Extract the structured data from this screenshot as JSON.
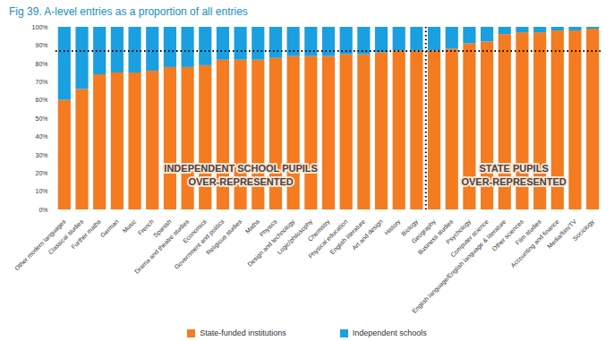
{
  "chart_data": {
    "type": "bar",
    "title": "Fig 39. A-level entries as a proportion of all entries",
    "stacked": true,
    "categories": [
      "Other modern languages",
      "Classical studies",
      "Further maths",
      "German",
      "Music",
      "French",
      "Spanish",
      "Drama and theatre studies",
      "Economics",
      "Government and politics",
      "Religious studies",
      "Maths",
      "Physics",
      "Design and technology",
      "Logic/philosophy",
      "Chemistry",
      "Physical education",
      "English literature",
      "Art and design",
      "History",
      "Biology",
      "Geography",
      "Business studies",
      "Psychology",
      "Computer science",
      "English language/English language & literature",
      "Other sciences",
      "Film studies",
      "Accounting and finance",
      "Media/film/TV",
      "Sociology"
    ],
    "series": [
      {
        "name": "State-funded institutions",
        "color": "#f47b20",
        "values": [
          60,
          66,
          74,
          75,
          75,
          76,
          78,
          78,
          79,
          82,
          82,
          82,
          83,
          84,
          84,
          84,
          85,
          85,
          86,
          87,
          87,
          87,
          88,
          91,
          92,
          96,
          97,
          97,
          98,
          98,
          99
        ]
      },
      {
        "name": "Independent schools",
        "color": "#1a9fe0",
        "values": [
          40,
          34,
          26,
          25,
          25,
          24,
          22,
          22,
          21,
          18,
          18,
          18,
          17,
          16,
          16,
          16,
          15,
          15,
          14,
          13,
          13,
          13,
          12,
          9,
          8,
          4,
          3,
          3,
          2,
          2,
          1
        ]
      }
    ],
    "ylim": [
      0,
      100
    ],
    "yticks": [
      {
        "value": 0,
        "label": "0%"
      },
      {
        "value": 10,
        "label": "10%"
      },
      {
        "value": 20,
        "label": "20%"
      },
      {
        "value": 30,
        "label": "30%"
      },
      {
        "value": 40,
        "label": "40%"
      },
      {
        "value": 50,
        "label": "50%"
      },
      {
        "value": 60,
        "label": "60%"
      },
      {
        "value": 70,
        "label": "70%"
      },
      {
        "value": 80,
        "label": "80%"
      },
      {
        "value": 90,
        "label": "90%"
      },
      {
        "value": 100,
        "label": "100%"
      }
    ],
    "grid": false,
    "legend": "bottom",
    "reference_line": 87,
    "divider_between": [
      "Biology",
      "Geography"
    ],
    "annotations": [
      {
        "text": "INDEPENDENT SCHOOL PUPILS\nOVER-REPRESENTED",
        "side": "left"
      },
      {
        "text": "STATE PUPILS\nOVER-REPRESENTED",
        "side": "right"
      }
    ]
  }
}
